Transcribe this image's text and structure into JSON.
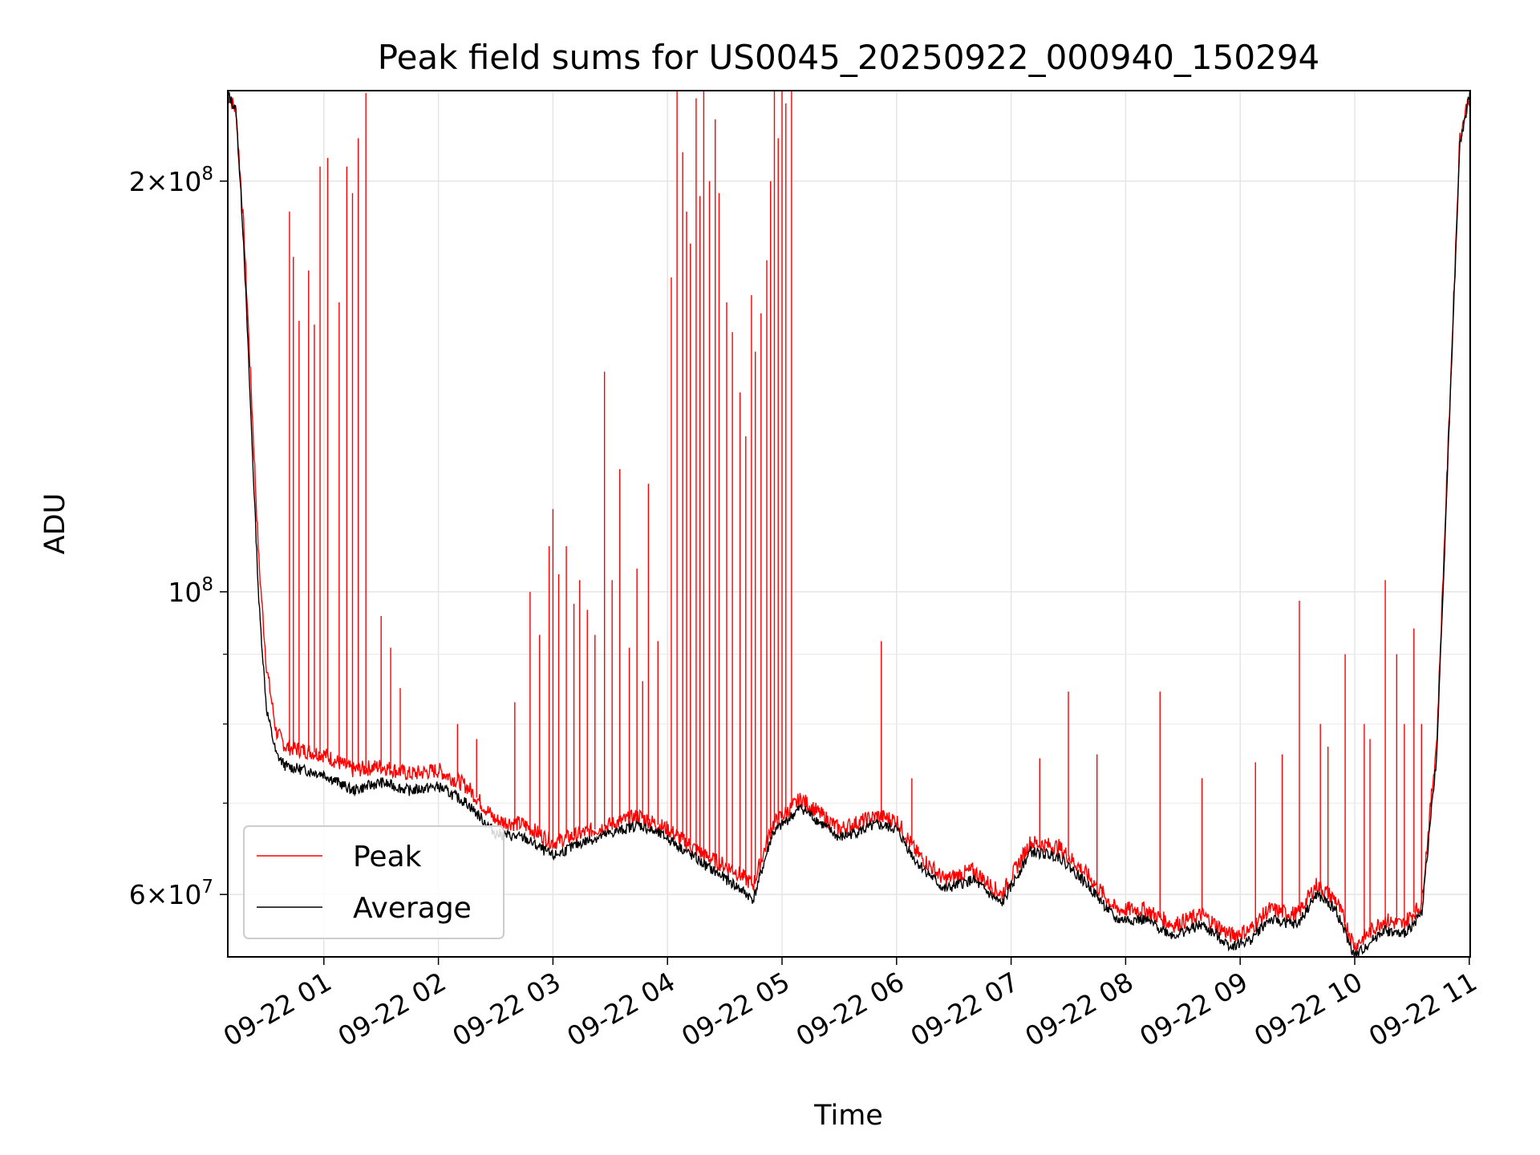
{
  "chart_data": {
    "type": "line",
    "title": "Peak field sums for US0045_20250922_000940_150294",
    "xlabel": "Time",
    "ylabel": "ADU",
    "y_scale": "log",
    "ylim": [
      54000000,
      233000000
    ],
    "xlim": [
      "09-22 00:09:40",
      "09-22 11:00:30"
    ],
    "x_tick_labels": [
      "09-22 01",
      "09-22 02",
      "09-22 03",
      "09-22 04",
      "09-22 05",
      "09-22 06",
      "09-22 07",
      "09-22 08",
      "09-22 09",
      "09-22 10",
      "09-22 11"
    ],
    "x_tick_times": [
      "09-22 01:00",
      "09-22 02:00",
      "09-22 03:00",
      "09-22 04:00",
      "09-22 05:00",
      "09-22 06:00",
      "09-22 07:00",
      "09-22 08:00",
      "09-22 09:00",
      "09-22 10:00",
      "09-22 11:00"
    ],
    "y_major_ticks": [
      {
        "value": 60000000,
        "mantissa": "6",
        "exponent": "7"
      },
      {
        "value": 100000000,
        "mantissa": "",
        "exponent": "8"
      },
      {
        "value": 200000000,
        "mantissa": "2",
        "exponent": "8"
      }
    ],
    "y_minor_ticks": [
      70000000,
      80000000,
      90000000
    ],
    "grid": true,
    "legend": {
      "position": "lower-left"
    },
    "series": [
      {
        "name": "Peak",
        "color": "#ff0000",
        "baseline": [
          [
            "09-22 00:09:40",
            232000000
          ],
          [
            "09-22 00:14",
            225000000
          ],
          [
            "09-22 00:18",
            185000000
          ],
          [
            "09-22 00:22",
            140000000
          ],
          [
            "09-22 00:26",
            105000000
          ],
          [
            "09-22 00:30",
            88000000
          ],
          [
            "09-22 00:35",
            79000000
          ],
          [
            "09-22 00:40",
            77000000
          ],
          [
            "09-22 00:50",
            76500000
          ],
          [
            "09-22 01:00",
            76000000
          ],
          [
            "09-22 01:15",
            74000000
          ],
          [
            "09-22 01:30",
            74500000
          ],
          [
            "09-22 01:45",
            73500000
          ],
          [
            "09-22 02:00",
            74000000
          ],
          [
            "09-22 02:15",
            72000000
          ],
          [
            "09-22 02:30",
            68000000
          ],
          [
            "09-22 02:45",
            67500000
          ],
          [
            "09-22 03:00",
            65500000
          ],
          [
            "09-22 03:15",
            66500000
          ],
          [
            "09-22 03:30",
            67500000
          ],
          [
            "09-22 03:45",
            68500000
          ],
          [
            "09-22 04:00",
            67000000
          ],
          [
            "09-22 04:20",
            64000000
          ],
          [
            "09-22 04:35",
            62500000
          ],
          [
            "09-22 04:45",
            61000000
          ],
          [
            "09-22 04:55",
            67500000
          ],
          [
            "09-22 05:10",
            70500000
          ],
          [
            "09-22 05:30",
            67000000
          ],
          [
            "09-22 05:50",
            68500000
          ],
          [
            "09-22 06:00",
            68000000
          ],
          [
            "09-22 06:10",
            64500000
          ],
          [
            "09-22 06:25",
            61500000
          ],
          [
            "09-22 06:40",
            62500000
          ],
          [
            "09-22 06:55",
            60000000
          ],
          [
            "09-22 07:10",
            65500000
          ],
          [
            "09-22 07:25",
            65000000
          ],
          [
            "09-22 07:40",
            62000000
          ],
          [
            "09-22 07:55",
            58500000
          ],
          [
            "09-22 08:10",
            58500000
          ],
          [
            "09-22 08:25",
            57000000
          ],
          [
            "09-22 08:40",
            58000000
          ],
          [
            "09-22 08:55",
            56000000
          ],
          [
            "09-22 09:05",
            56500000
          ],
          [
            "09-22 09:15",
            58500000
          ],
          [
            "09-22 09:30",
            58000000
          ],
          [
            "09-22 09:40",
            61000000
          ],
          [
            "09-22 09:50",
            59500000
          ],
          [
            "09-22 10:00",
            55000000
          ],
          [
            "09-22 10:15",
            57500000
          ],
          [
            "09-22 10:25",
            57000000
          ],
          [
            "09-22 10:35",
            59000000
          ],
          [
            "09-22 10:43",
            78000000
          ],
          [
            "09-22 10:50",
            140000000
          ],
          [
            "09-22 10:55",
            215000000
          ],
          [
            "09-22 11:00:30",
            233000000
          ]
        ],
        "spikes": [
          [
            "09-22 00:42",
            190000000
          ],
          [
            "09-22 00:44",
            176000000
          ],
          [
            "09-22 00:47",
            158000000
          ],
          [
            "09-22 00:52",
            172000000
          ],
          [
            "09-22 00:55",
            157000000
          ],
          [
            "09-22 00:58",
            205000000
          ],
          [
            "09-22 01:02",
            208000000
          ],
          [
            "09-22 01:08",
            163000000
          ],
          [
            "09-22 01:12",
            205000000
          ],
          [
            "09-22 01:15",
            196000000
          ],
          [
            "09-22 01:18",
            215000000
          ],
          [
            "09-22 01:22",
            232000000
          ],
          [
            "09-22 01:30",
            96000000
          ],
          [
            "09-22 01:35",
            91000000
          ],
          [
            "09-22 01:40",
            85000000
          ],
          [
            "09-22 02:10",
            80000000
          ],
          [
            "09-22 02:20",
            78000000
          ],
          [
            "09-22 02:40",
            83000000
          ],
          [
            "09-22 02:48",
            100000000
          ],
          [
            "09-22 02:53",
            93000000
          ],
          [
            "09-22 02:58",
            108000000
          ],
          [
            "09-22 03:00",
            115000000
          ],
          [
            "09-22 03:03",
            103000000
          ],
          [
            "09-22 03:07",
            108000000
          ],
          [
            "09-22 03:11",
            98000000
          ],
          [
            "09-22 03:14",
            102000000
          ],
          [
            "09-22 03:18",
            97000000
          ],
          [
            "09-22 03:22",
            93000000
          ],
          [
            "09-22 03:27",
            145000000
          ],
          [
            "09-22 03:31",
            102000000
          ],
          [
            "09-22 03:35",
            123000000
          ],
          [
            "09-22 03:40",
            91000000
          ],
          [
            "09-22 03:44",
            104000000
          ],
          [
            "09-22 03:47",
            86000000
          ],
          [
            "09-22 03:50",
            120000000
          ],
          [
            "09-22 03:55",
            92000000
          ],
          [
            "09-22 04:02",
            170000000
          ],
          [
            "09-22 04:05",
            233000000
          ],
          [
            "09-22 04:08",
            210000000
          ],
          [
            "09-22 04:10",
            190000000
          ],
          [
            "09-22 04:12",
            180000000
          ],
          [
            "09-22 04:15",
            230000000
          ],
          [
            "09-22 04:17",
            195000000
          ],
          [
            "09-22 04:19",
            233000000
          ],
          [
            "09-22 04:22",
            200000000
          ],
          [
            "09-22 04:25",
            222000000
          ],
          [
            "09-22 04:27",
            196000000
          ],
          [
            "09-22 04:31",
            163000000
          ],
          [
            "09-22 04:34",
            155000000
          ],
          [
            "09-22 04:38",
            140000000
          ],
          [
            "09-22 04:41",
            130000000
          ],
          [
            "09-22 04:44",
            165000000
          ],
          [
            "09-22 04:46",
            150000000
          ],
          [
            "09-22 04:49",
            160000000
          ],
          [
            "09-22 04:52",
            175000000
          ],
          [
            "09-22 04:54",
            200000000
          ],
          [
            "09-22 04:56",
            233000000
          ],
          [
            "09-22 04:58",
            215000000
          ],
          [
            "09-22 05:00",
            233000000
          ],
          [
            "09-22 05:02",
            228000000
          ],
          [
            "09-22 05:05",
            233000000
          ],
          [
            "09-22 05:52",
            92000000
          ],
          [
            "09-22 06:08",
            73000000
          ],
          [
            "09-22 07:15",
            75500000
          ],
          [
            "09-22 07:30",
            84500000
          ],
          [
            "09-22 07:45",
            76000000
          ],
          [
            "09-22 08:18",
            84500000
          ],
          [
            "09-22 08:40",
            73000000
          ],
          [
            "09-22 09:08",
            75000000
          ],
          [
            "09-22 09:22",
            76000000
          ],
          [
            "09-22 09:31",
            98500000
          ],
          [
            "09-22 09:42",
            80000000
          ],
          [
            "09-22 09:46",
            77000000
          ],
          [
            "09-22 09:55",
            90000000
          ],
          [
            "09-22 10:05",
            80000000
          ],
          [
            "09-22 10:08",
            78000000
          ],
          [
            "09-22 10:16",
            102000000
          ],
          [
            "09-22 10:22",
            90000000
          ],
          [
            "09-22 10:26",
            80000000
          ],
          [
            "09-22 10:31",
            94000000
          ],
          [
            "09-22 10:35",
            80000000
          ]
        ]
      },
      {
        "name": "Average",
        "color": "#000000",
        "baseline": [
          [
            "09-22 00:09:40",
            232000000
          ],
          [
            "09-22 00:14",
            225000000
          ],
          [
            "09-22 00:18",
            180000000
          ],
          [
            "09-22 00:22",
            132000000
          ],
          [
            "09-22 00:26",
            98000000
          ],
          [
            "09-22 00:30",
            82000000
          ],
          [
            "09-22 00:35",
            76000000
          ],
          [
            "09-22 00:40",
            74500000
          ],
          [
            "09-22 00:50",
            74000000
          ],
          [
            "09-22 01:00",
            73500000
          ],
          [
            "09-22 01:15",
            71500000
          ],
          [
            "09-22 01:30",
            72500000
          ],
          [
            "09-22 01:45",
            71500000
          ],
          [
            "09-22 02:00",
            72000000
          ],
          [
            "09-22 02:15",
            70000000
          ],
          [
            "09-22 02:30",
            66500000
          ],
          [
            "09-22 02:45",
            66000000
          ],
          [
            "09-22 03:00",
            64000000
          ],
          [
            "09-22 03:15",
            65500000
          ],
          [
            "09-22 03:30",
            66500000
          ],
          [
            "09-22 03:45",
            67500000
          ],
          [
            "09-22 04:00",
            66000000
          ],
          [
            "09-22 04:20",
            63000000
          ],
          [
            "09-22 04:35",
            61000000
          ],
          [
            "09-22 04:45",
            59500000
          ],
          [
            "09-22 04:55",
            66500000
          ],
          [
            "09-22 05:10",
            69500000
          ],
          [
            "09-22 05:30",
            66000000
          ],
          [
            "09-22 05:50",
            67500000
          ],
          [
            "09-22 06:00",
            67000000
          ],
          [
            "09-22 06:10",
            63500000
          ],
          [
            "09-22 06:25",
            60500000
          ],
          [
            "09-22 06:40",
            61500000
          ],
          [
            "09-22 06:55",
            59000000
          ],
          [
            "09-22 07:10",
            64500000
          ],
          [
            "09-22 07:25",
            64000000
          ],
          [
            "09-22 07:40",
            61000000
          ],
          [
            "09-22 07:55",
            57500000
          ],
          [
            "09-22 08:10",
            57500000
          ],
          [
            "09-22 08:25",
            56000000
          ],
          [
            "09-22 08:40",
            57000000
          ],
          [
            "09-22 08:55",
            55000000
          ],
          [
            "09-22 09:05",
            55500000
          ],
          [
            "09-22 09:15",
            57500000
          ],
          [
            "09-22 09:30",
            57000000
          ],
          [
            "09-22 09:40",
            60000000
          ],
          [
            "09-22 09:50",
            58500000
          ],
          [
            "09-22 10:00",
            54000000
          ],
          [
            "09-22 10:15",
            56500000
          ],
          [
            "09-22 10:25",
            56000000
          ],
          [
            "09-22 10:35",
            58000000
          ],
          [
            "09-22 10:43",
            76000000
          ],
          [
            "09-22 10:50",
            138000000
          ],
          [
            "09-22 10:55",
            212000000
          ],
          [
            "09-22 11:00:30",
            233000000
          ]
        ]
      }
    ]
  }
}
